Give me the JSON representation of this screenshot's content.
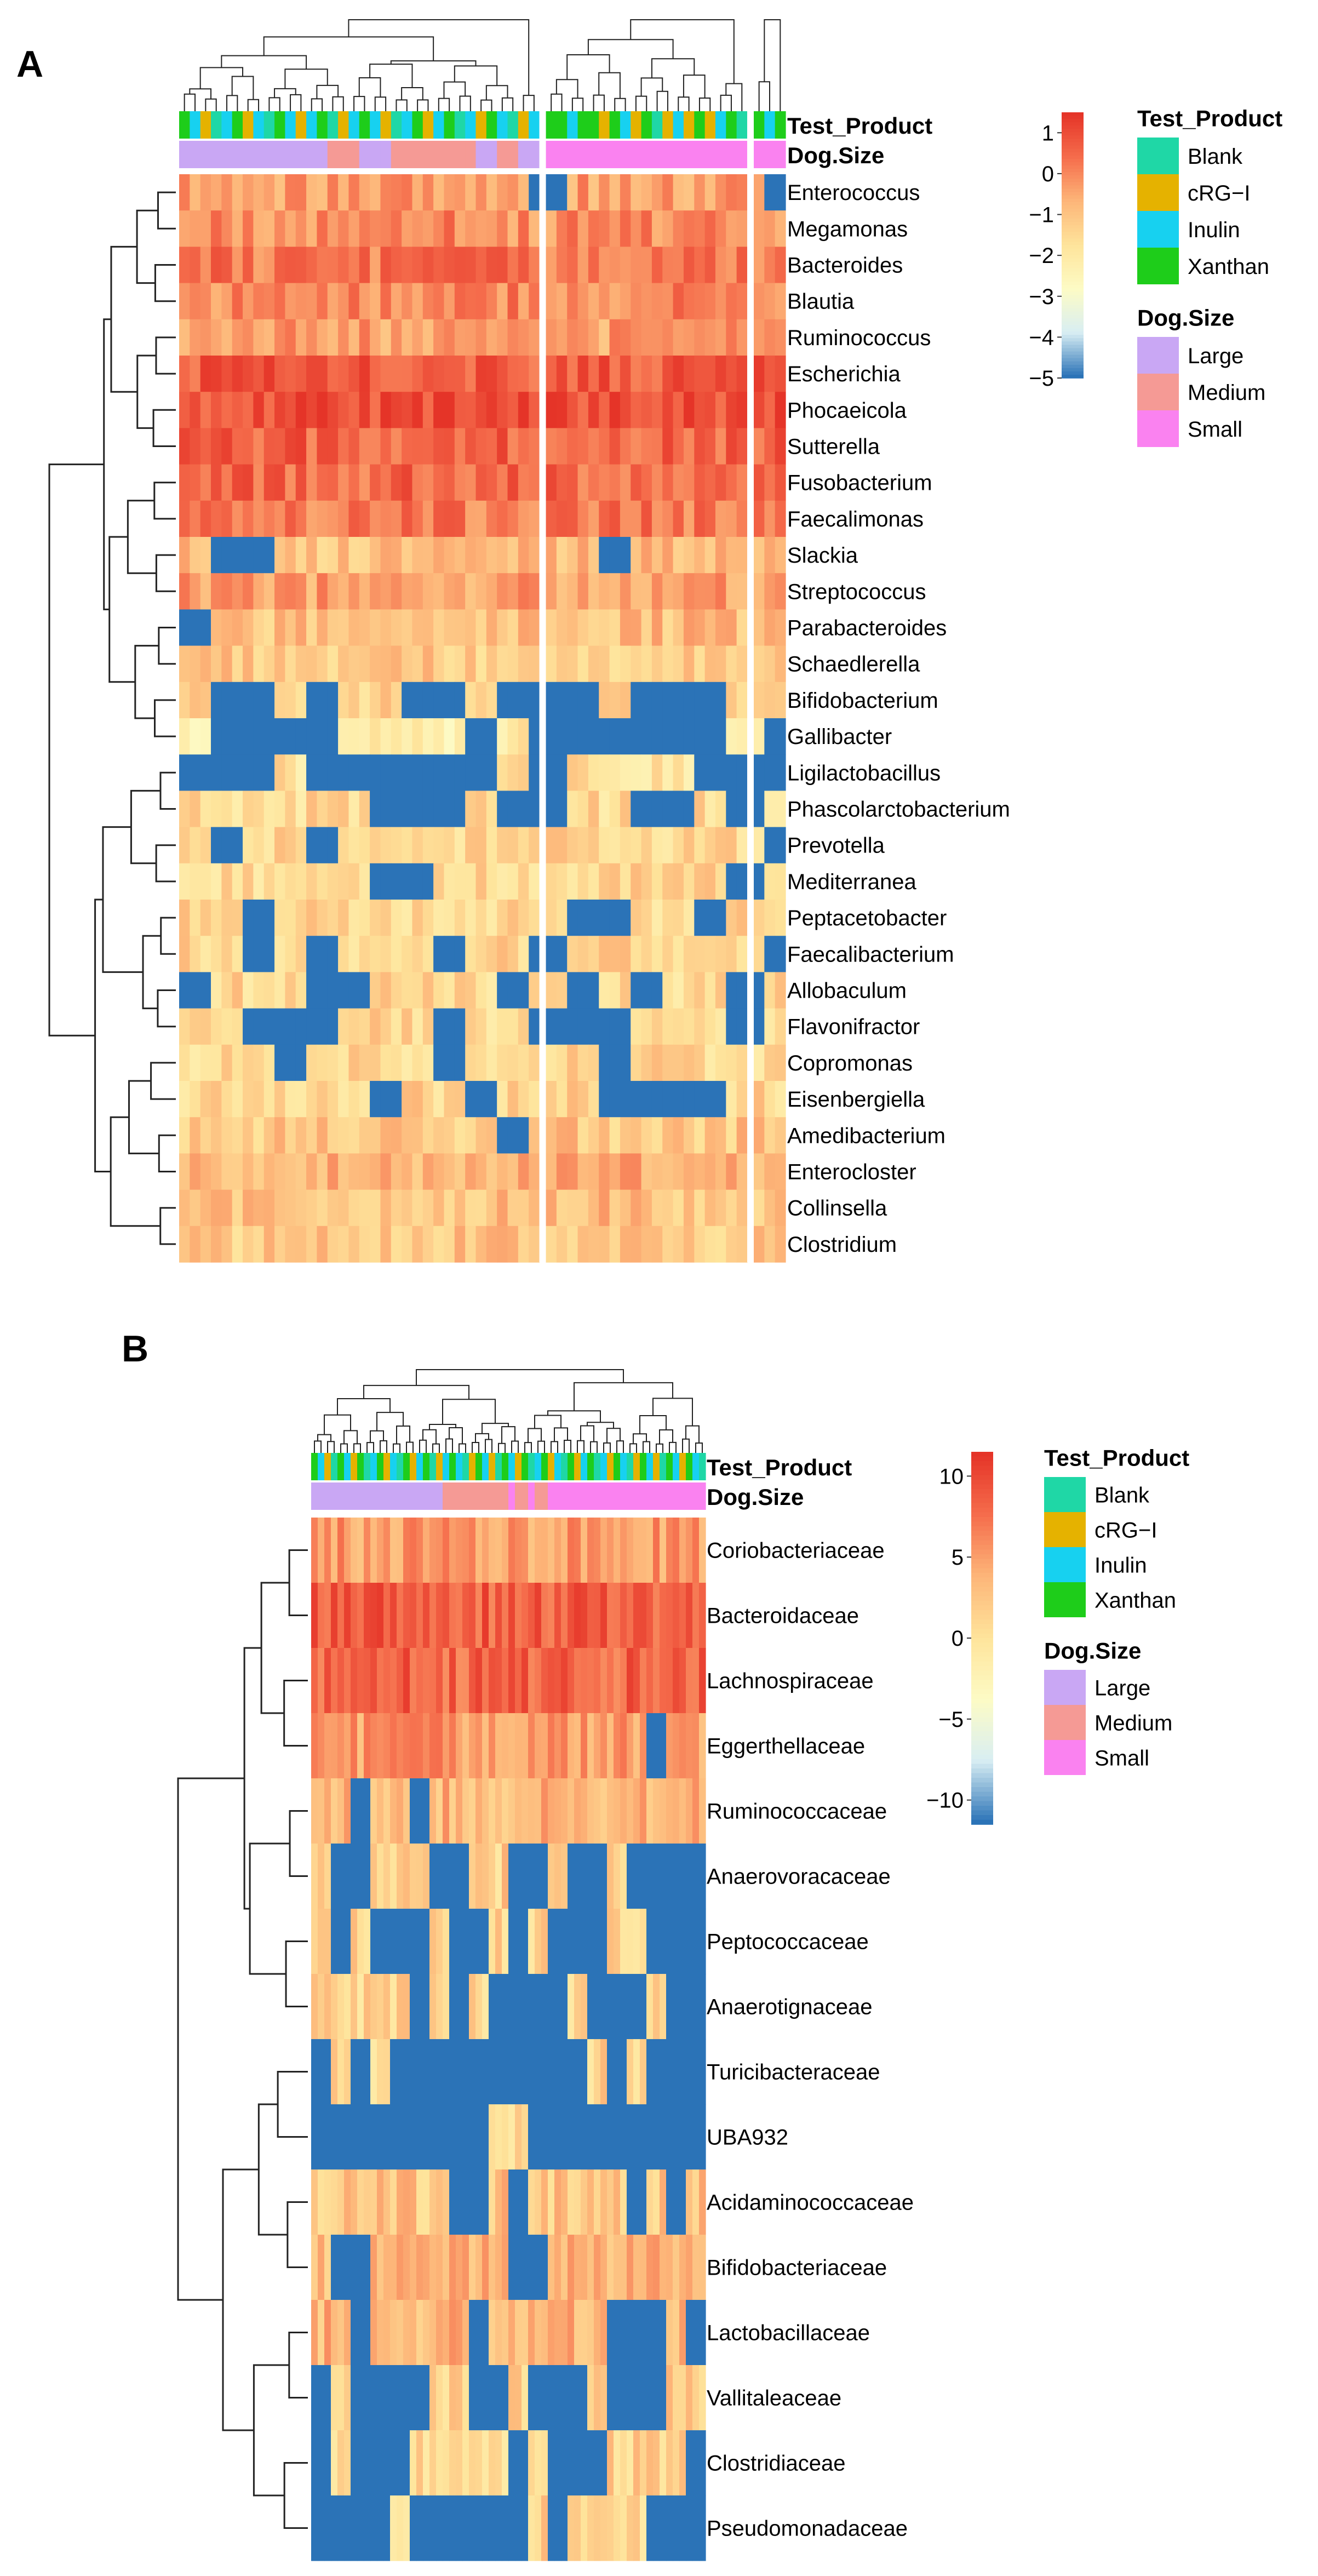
{
  "colors": {
    "scale": [
      "#2b73b7",
      "#d8eef3",
      "#fdfbc5",
      "#fee49b",
      "#fdb679",
      "#f56d4c",
      "#e53428"
    ],
    "empty": "#2b73b7"
  },
  "chart_data": [
    {
      "type": "heatmap",
      "panel": "A",
      "annotation_titles": [
        "Test_Product",
        "Dog.Size"
      ],
      "rows": [
        "Enterococcus",
        "Megamonas",
        "Bacteroides",
        "Blautia",
        "Ruminococcus",
        "Escherichia",
        "Phocaeicola",
        "Sutterella",
        "Fusobacterium",
        "Faecalimonas",
        "Slackia",
        "Streptococcus",
        "Parabacteroides",
        "Schaedlerella",
        "Bifidobacterium",
        "Gallibacter",
        "Ligilactobacillus",
        "Phascolarctobacterium",
        "Prevotella",
        "Mediterranea",
        "Peptacetobacter",
        "Faecalibacterium",
        "Allobaculum",
        "Flavonifractor",
        "Copromonas",
        "Eisenbergiella",
        "Amedibacterium",
        "Enterocloster",
        "Collinsella",
        "Clostridium"
      ],
      "row_level": [
        0.6,
        0.7,
        0.78,
        0.72,
        0.6,
        0.92,
        0.98,
        0.88,
        0.85,
        0.78,
        0.45,
        0.6,
        0.45,
        0.4,
        0.35,
        0.12,
        0.22,
        0.28,
        0.3,
        0.3,
        0.3,
        0.32,
        0.3,
        0.3,
        0.3,
        0.32,
        0.4,
        0.55,
        0.45,
        0.4
      ],
      "row_blue": [
        0.02,
        0,
        0,
        0,
        0,
        0,
        0,
        0,
        0,
        0,
        0.2,
        0.04,
        0.06,
        0.1,
        0.38,
        0.72,
        0.6,
        0.28,
        0.22,
        0.22,
        0.2,
        0.25,
        0.28,
        0.3,
        0.22,
        0.25,
        0.05,
        0.06,
        0,
        0.05
      ],
      "n_columns": 56,
      "column_splits": [
        34,
        53
      ],
      "groups": {
        "Test_Product": [
          "Xanthan",
          "Inulin",
          "cRG-I",
          "Blank",
          "Inulin",
          "Xanthan",
          "cRG-I",
          "Inulin",
          "Blank",
          "Xanthan",
          "Inulin",
          "cRG-I",
          "Inulin",
          "Xanthan",
          "Blank",
          "cRG-I",
          "Inulin",
          "Xanthan",
          "Inulin",
          "cRG-I",
          "Blank",
          "Inulin",
          "Xanthan",
          "cRG-I",
          "Inulin",
          "Xanthan",
          "Blank",
          "Inulin",
          "cRG-I",
          "Xanthan",
          "Inulin",
          "Blank",
          "cRG-I",
          "Inulin",
          "Xanthan",
          "Xanthan",
          "Inulin",
          "Xanthan",
          "Xanthan",
          "cRG-I",
          "Xanthan",
          "Inulin",
          "cRG-I",
          "Xanthan",
          "Blank",
          "cRG-I",
          "Inulin",
          "cRG-I",
          "Xanthan",
          "cRG-I",
          "Inulin",
          "Xanthan",
          "Blank",
          "Xanthan",
          "Inulin",
          "Xanthan"
        ],
        "Dog.Size": [
          "Large",
          "Large",
          "Large",
          "Large",
          "Large",
          "Large",
          "Large",
          "Large",
          "Large",
          "Large",
          "Large",
          "Large",
          "Large",
          "Large",
          "Medium",
          "Medium",
          "Medium",
          "Large",
          "Large",
          "Large",
          "Medium",
          "Medium",
          "Medium",
          "Medium",
          "Medium",
          "Medium",
          "Medium",
          "Medium",
          "Large",
          "Large",
          "Medium",
          "Medium",
          "Large",
          "Large",
          "Small",
          "Small",
          "Small",
          "Small",
          "Small",
          "Small",
          "Small",
          "Small",
          "Small",
          "Small",
          "Small",
          "Small",
          "Small",
          "Small",
          "Small",
          "Small",
          "Small",
          "Small",
          "Small",
          "Small",
          "Small",
          "Small"
        ]
      },
      "colorbar": {
        "ticks": [
          1,
          0,
          -1,
          -2,
          -3,
          -4,
          -5
        ],
        "range": [
          -5,
          1.5
        ]
      }
    },
    {
      "type": "heatmap",
      "panel": "B",
      "annotation_titles": [
        "Test_Product",
        "Dog.Size"
      ],
      "rows": [
        "Coriobacteriaceae",
        "Bacteroidaceae",
        "Lachnospiraceae",
        "Eggerthellaceae",
        "Ruminococcaceae",
        "Anaerovoracaceae",
        "Peptococcaceae",
        "Anaerotignaceae",
        "Turicibacteraceae",
        "UBA932",
        "Acidaminococcaceae",
        "Bifidobacteriaceae",
        "Lactobacillaceae",
        "Vallitaleaceae",
        "Clostridiaceae",
        "Pseudomonadaceae"
      ],
      "row_level": [
        0.62,
        0.9,
        0.88,
        0.62,
        0.5,
        0.35,
        0.32,
        0.32,
        0.32,
        0.32,
        0.42,
        0.5,
        0.5,
        0.33,
        0.33,
        0.33
      ],
      "row_blue": [
        0.02,
        0,
        0,
        0.08,
        0.15,
        0.55,
        0.6,
        0.62,
        0.65,
        0.7,
        0.22,
        0.3,
        0.35,
        0.45,
        0.55,
        0.6
      ],
      "n_columns": 60,
      "column_splits": [],
      "groups": {
        "Test_Product": [
          "Xanthan",
          "Inulin",
          "cRG-I",
          "Blank",
          "Xanthan",
          "Inulin",
          "cRG-I",
          "Xanthan",
          "Blank",
          "Inulin",
          "Xanthan",
          "cRG-I",
          "Inulin",
          "Blank",
          "Xanthan",
          "cRG-I",
          "Inulin",
          "Xanthan",
          "Blank",
          "cRG-I",
          "Inulin",
          "Xanthan",
          "Inulin",
          "Blank",
          "cRG-I",
          "Xanthan",
          "Inulin",
          "cRG-I",
          "Blank",
          "Xanthan",
          "Inulin",
          "cRG-I",
          "Xanthan",
          "Blank",
          "Inulin",
          "Xanthan",
          "cRG-I",
          "Inulin",
          "Blank",
          "Xanthan",
          "cRG-I",
          "Inulin",
          "Xanthan",
          "Blank",
          "Inulin",
          "cRG-I",
          "Xanthan",
          "Inulin",
          "Blank",
          "cRG-I",
          "Xanthan",
          "Inulin",
          "cRG-I",
          "Blank",
          "Xanthan",
          "Inulin",
          "cRG-I",
          "Xanthan",
          "Inulin",
          "Blank"
        ],
        "Dog.Size": [
          "Large",
          "Large",
          "Large",
          "Large",
          "Large",
          "Large",
          "Large",
          "Large",
          "Large",
          "Large",
          "Large",
          "Large",
          "Large",
          "Large",
          "Large",
          "Large",
          "Large",
          "Large",
          "Large",
          "Large",
          "Medium",
          "Medium",
          "Medium",
          "Medium",
          "Medium",
          "Medium",
          "Medium",
          "Medium",
          "Medium",
          "Medium",
          "Small",
          "Medium",
          "Medium",
          "Small",
          "Medium",
          "Medium",
          "Small",
          "Small",
          "Small",
          "Small",
          "Small",
          "Small",
          "Small",
          "Small",
          "Small",
          "Small",
          "Small",
          "Small",
          "Small",
          "Small",
          "Small",
          "Small",
          "Small",
          "Small",
          "Small",
          "Small",
          "Small",
          "Small",
          "Small",
          "Small"
        ]
      },
      "colorbar": {
        "ticks": [
          10,
          5,
          0,
          -5,
          -10
        ],
        "range": [
          -11.5,
          11.5
        ]
      }
    }
  ],
  "legend": {
    "test_product": {
      "title": "Test_Product",
      "items": [
        {
          "label": "Blank",
          "color": "#1fd7a6"
        },
        {
          "label": "cRG−I",
          "color": "#e5b200"
        },
        {
          "label": "Inulin",
          "color": "#17d1f0"
        },
        {
          "label": "Xanthan",
          "color": "#1ecd1a"
        }
      ]
    },
    "dog_size": {
      "title": "Dog.Size",
      "items": [
        {
          "label": "Large",
          "color": "#c9a7f4"
        },
        {
          "label": "Medium",
          "color": "#f59a95"
        },
        {
          "label": "Small",
          "color": "#fa82f0"
        }
      ]
    }
  }
}
